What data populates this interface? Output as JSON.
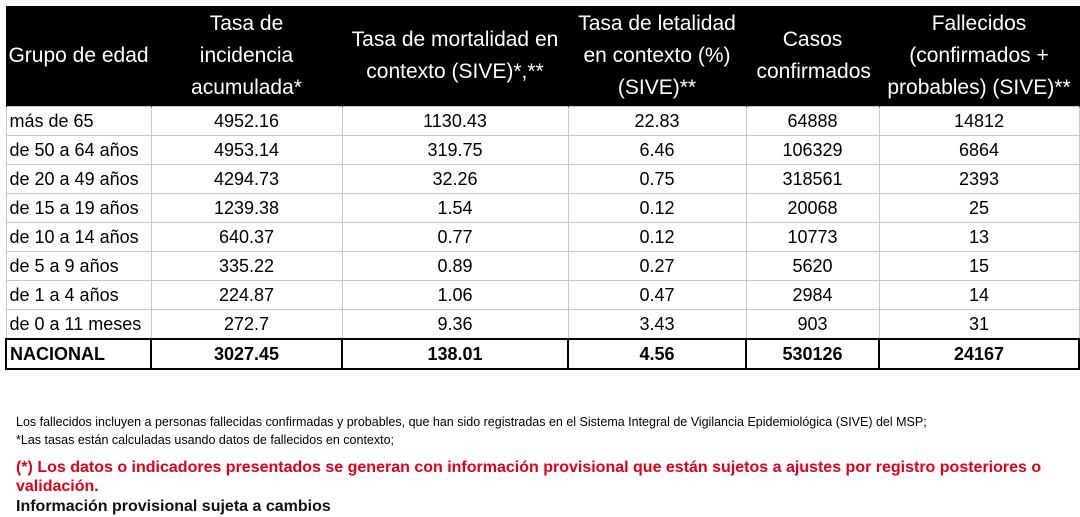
{
  "chart_data": {
    "type": "table",
    "columns": [
      "Grupo de edad",
      "Tasa de incidencia acumulada*",
      "Tasa de mortalidad en contexto (SIVE)*,**",
      "Tasa de letalidad en contexto (%) (SIVE)**",
      "Casos confirmados",
      "Fallecidos (confirmados + probables) (SIVE)**"
    ],
    "rows": [
      [
        "más de 65",
        "4952.16",
        "1130.43",
        "22.83",
        "64888",
        "14812"
      ],
      [
        "de 50 a 64 años",
        "4953.14",
        "319.75",
        "6.46",
        "106329",
        "6864"
      ],
      [
        "de 20 a 49 años",
        "4294.73",
        "32.26",
        "0.75",
        "318561",
        "2393"
      ],
      [
        "de 15 a 19 años",
        "1239.38",
        "1.54",
        "0.12",
        "20068",
        "25"
      ],
      [
        "de 10 a 14 años",
        "640.37",
        "0.77",
        "0.12",
        "10773",
        "13"
      ],
      [
        "de 5 a 9 años",
        "335.22",
        "0.89",
        "0.27",
        "5620",
        "15"
      ],
      [
        "de 1 a 4 años",
        "224.87",
        "1.06",
        "0.47",
        "2984",
        "14"
      ],
      [
        "de 0 a 11 meses",
        "272.7",
        "9.36",
        "3.43",
        "903",
        "31"
      ]
    ],
    "total": [
      "NACIONAL",
      "3027.45",
      "138.01",
      "4.56",
      "530126",
      "24167"
    ]
  },
  "notes": {
    "line1": "Los fallecidos incluyen a personas fallecidas confirmadas y probables, que han sido registradas en el Sistema Integral de Vigilancia Epidemiológica (SIVE) del MSP;",
    "line2": "*Las tasas están calculadas usando datos de fallecidos en contexto;"
  },
  "warning": "(*) Los datos o indicadores presentados se generan con información provisional que están sujetos a ajustes por registro posteriores o validación.",
  "provisional": "Información provisional sujeta a cambios",
  "colors": {
    "header_bg": "#000000",
    "header_text": "#ffffff",
    "warning_text": "#e0001b"
  }
}
